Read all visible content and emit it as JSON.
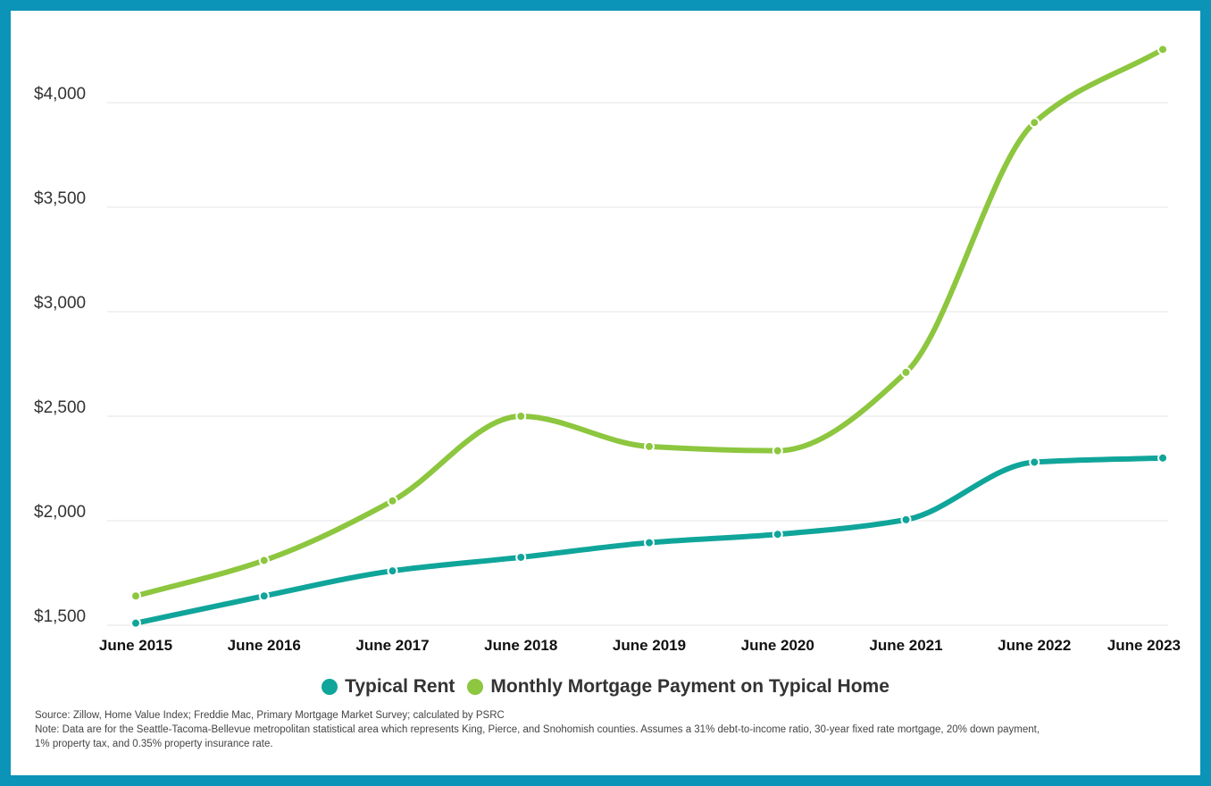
{
  "chart_data": {
    "type": "line",
    "title": "",
    "xlabel": "",
    "ylabel": "",
    "categories": [
      "June 2015",
      "June 2016",
      "June 2017",
      "June 2018",
      "June 2019",
      "June 2020",
      "June 2021",
      "June 2022",
      "June 2023"
    ],
    "ylim": [
      1500,
      4000
    ],
    "yticks": [
      1500,
      2000,
      2500,
      3000,
      3500,
      4000
    ],
    "ytick_labels": [
      "$1,500",
      "$2,000",
      "$2,500",
      "$3,000",
      "$3,500",
      "$4,000"
    ],
    "grid": true,
    "legend_position": "bottom-center",
    "series": [
      {
        "name": "Typical Rent",
        "color": "#10a59a",
        "values": [
          1510,
          1640,
          1760,
          1825,
          1895,
          1935,
          2005,
          2280,
          2300
        ]
      },
      {
        "name": "Monthly Mortgage Payment on Typical Home",
        "color": "#8dc63f",
        "values": [
          1640,
          1810,
          2095,
          2500,
          2355,
          2335,
          2710,
          3905,
          4255
        ]
      }
    ]
  },
  "notes": {
    "source": "Source: Zillow, Home Value Index; Freddie Mac, Primary Mortgage Market Survey; calculated by PSRC",
    "note_line1": "Note: Data are for the Seattle-Tacoma-Bellevue metropolitan statistical area which represents King, Pierce, and Snohomish counties. Assumes a 31% debt-to-income ratio, 30-year fixed rate mortgage, 20% down payment,",
    "note_line2": "1% property tax, and 0.35% property insurance rate."
  }
}
